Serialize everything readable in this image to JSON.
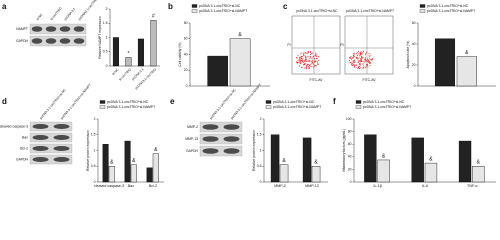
{
  "panel_labels": [
    "a",
    "b",
    "c",
    "d",
    "e",
    "f"
  ],
  "blots": [
    {
      "lanes": [
        "si-NC",
        "si-circTRIO",
        "pcDNA 3.1",
        "pcDNA3.1-circTRIO"
      ],
      "rows": [
        "NAMPT",
        "GAPDH"
      ]
    },
    {
      "lanes": [
        "pcDNA 3.1-circTRIO+si-NC",
        "pcDNA 3.1-circTRIO+si-NAMPT"
      ],
      "rows": [
        "cleaved caspase-3",
        "Bax",
        "Bcl-2",
        "GAPDH"
      ]
    },
    {
      "lanes": [
        "pcDNA 3.1-circTRIO+si-NC",
        "pcDNA 3.1-circTRIO+si-NAMPT"
      ],
      "rows": [
        "MMP-2",
        "MMP-13",
        "GAPDH"
      ]
    }
  ],
  "flow": {
    "titles": [
      "pcDNA 3.1-circTRIO+si-NC",
      "pcDNA 3.1-circTRIO+si-NAMPT"
    ],
    "xlabel": "FITC-AV",
    "ylabel": "PI"
  },
  "chart_data": [
    {
      "type": "bar",
      "ylabel": "Relative NAMPT expression",
      "categories": [
        "si-NC",
        "si-circTRIO",
        "pcDNA 3.1",
        "pcDNA3.1-circTRIO"
      ],
      "values": [
        1.0,
        0.3,
        0.95,
        1.6
      ],
      "colors": [
        "#222222",
        "#bbbbbb",
        "#222222",
        "#bbbbbb"
      ],
      "markers": [
        null,
        "*",
        null,
        "#"
      ],
      "ylim": [
        0,
        2
      ],
      "yticks": [
        0,
        0.5,
        1,
        1.5,
        2
      ]
    },
    {
      "type": "bar",
      "ylabel": "Cell viability (%)",
      "categories": [
        null
      ],
      "series": [
        {
          "name": "pcDNA 3.1-circTRIO+si-NC",
          "color": "#222222",
          "values": [
            38
          ]
        },
        {
          "name": "pcDNA 3.1-circTRIO+si-NAMPT",
          "color": "#e6e6e6",
          "values": [
            60
          ],
          "markers": [
            "&"
          ]
        }
      ],
      "ylim": [
        0,
        80
      ],
      "yticks": [
        0,
        20,
        40,
        60,
        80
      ]
    },
    {
      "type": "bar",
      "ylabel": "Apoptosis rate (%)",
      "categories": [
        null
      ],
      "series": [
        {
          "name": "pcDNA 3.1-circTRIO+si-NC",
          "color": "#222222",
          "values": [
            45
          ]
        },
        {
          "name": "pcDNA 3.1-circTRIO+si-NAMPT",
          "color": "#e6e6e6",
          "values": [
            28
          ],
          "markers": [
            "&"
          ]
        }
      ],
      "ylim": [
        0,
        60
      ],
      "yticks": [
        0,
        20,
        40,
        60
      ]
    },
    {
      "type": "bar",
      "ylabel": "Relative protein expression",
      "categories": [
        "cleaved caspase-3",
        "Bax",
        "Bcl-2"
      ],
      "series": [
        {
          "name": "pcDNA 3.1-circTRIO+si-NC",
          "color": "#222222",
          "values": [
            1.2,
            1.3,
            0.45
          ]
        },
        {
          "name": "pcDNA 3.1-circTRIO+si-NAMPT",
          "color": "#e6e6e6",
          "values": [
            0.5,
            0.55,
            0.9
          ],
          "markers": [
            "&",
            "&",
            "&"
          ]
        }
      ],
      "ylim": [
        0,
        2
      ],
      "yticks": [
        0,
        0.5,
        1,
        1.5,
        2
      ]
    },
    {
      "type": "bar",
      "ylabel": "Relative protein expression",
      "categories": [
        "MMP-2",
        "MMP-13"
      ],
      "series": [
        {
          "name": "pcDNA 3.1-circTRIO+si-NC",
          "color": "#222222",
          "values": [
            1.5,
            1.4
          ]
        },
        {
          "name": "pcDNA 3.1-circTRIO+si-NAMPT",
          "color": "#e6e6e6",
          "values": [
            0.55,
            0.5
          ],
          "markers": [
            "&",
            "&"
          ]
        }
      ],
      "ylim": [
        0,
        2
      ],
      "yticks": [
        0,
        0.5,
        1,
        1.5,
        2
      ]
    },
    {
      "type": "bar",
      "ylabel": "Inflammatory factors (pg/mL)",
      "categories": [
        "IL-1β",
        "IL-6",
        "TNF-α"
      ],
      "series": [
        {
          "name": "pcDNA 3.1-circTRIO+si-NC",
          "color": "#222222",
          "values": [
            75,
            70,
            65
          ]
        },
        {
          "name": "pcDNA 3.1-circTRIO+si-NAMPT",
          "color": "#e6e6e6",
          "values": [
            35,
            30,
            25
          ],
          "markers": [
            "&",
            "&",
            "&"
          ]
        }
      ],
      "ylim": [
        0,
        100
      ],
      "yticks": [
        0,
        20,
        40,
        60,
        80,
        100
      ]
    }
  ]
}
